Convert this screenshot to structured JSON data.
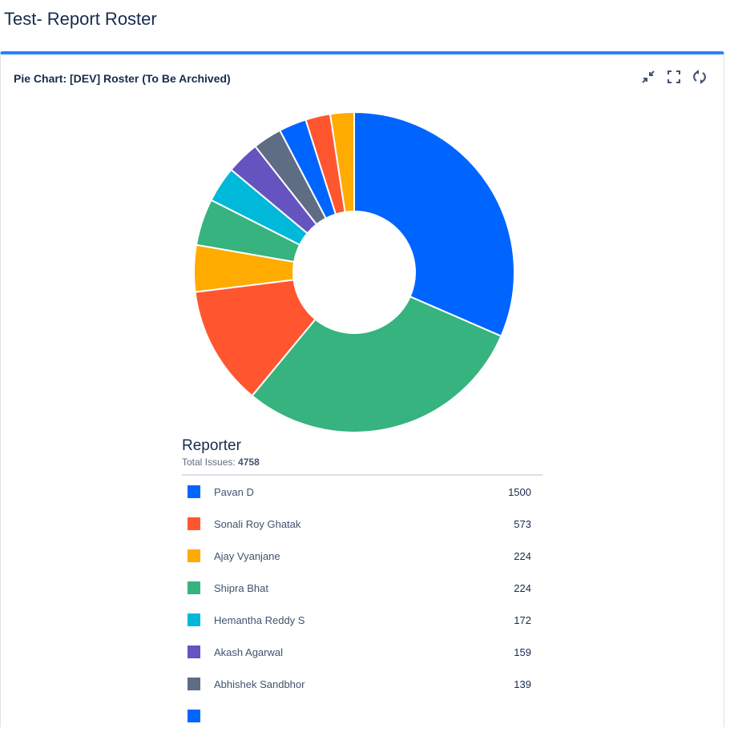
{
  "page": {
    "title": "Test- Report Roster"
  },
  "gadget": {
    "title": "Pie Chart: [DEV] Roster (To Be Archived)",
    "icons": [
      "minimize-icon",
      "fullscreen-icon",
      "refresh-icon"
    ]
  },
  "legend": {
    "title": "Reporter",
    "total_label": "Total Issues:",
    "total": "4758"
  },
  "chart_data": {
    "type": "pie",
    "title": "Reporter",
    "total": 4758,
    "donut": true,
    "slices": [
      {
        "label": "Pavan D",
        "value": 1500,
        "color": "#0065FF"
      },
      {
        "label": null,
        "value": 1402,
        "color": "#36B37E"
      },
      {
        "label": "Sonali Roy Ghatak",
        "value": 573,
        "color": "#FF5630"
      },
      {
        "label": "Ajay Vyanjane",
        "value": 224,
        "color": "#FFAB00"
      },
      {
        "label": "Shipra Bhat",
        "value": 224,
        "color": "#36B37E"
      },
      {
        "label": "Hemantha Reddy S",
        "value": 172,
        "color": "#00B8D9"
      },
      {
        "label": "Akash Agarwal",
        "value": 159,
        "color": "#6554C0"
      },
      {
        "label": "Abhishek Sandbhor",
        "value": 139,
        "color": "#5E6C84"
      },
      {
        "label": null,
        "value": 132,
        "color": "#0065FF"
      },
      {
        "label": null,
        "value": 119,
        "color": "#FF5630"
      },
      {
        "label": null,
        "value": 114,
        "color": "#FFAB00"
      }
    ],
    "legend_rows": [
      {
        "label": "Pavan D",
        "value": "1500",
        "color": "#0065FF"
      },
      {
        "label": "Sonali Roy Ghatak",
        "value": "573",
        "color": "#FF5630"
      },
      {
        "label": "Ajay Vyanjane",
        "value": "224",
        "color": "#FFAB00"
      },
      {
        "label": "Shipra Bhat",
        "value": "224",
        "color": "#36B37E"
      },
      {
        "label": "Hemantha Reddy S",
        "value": "172",
        "color": "#00B8D9"
      },
      {
        "label": "Akash Agarwal",
        "value": "159",
        "color": "#6554C0"
      },
      {
        "label": "Abhishek Sandbhor",
        "value": "139",
        "color": "#5E6C84"
      },
      {
        "label": "",
        "value": "",
        "color": "#0065FF"
      }
    ]
  }
}
